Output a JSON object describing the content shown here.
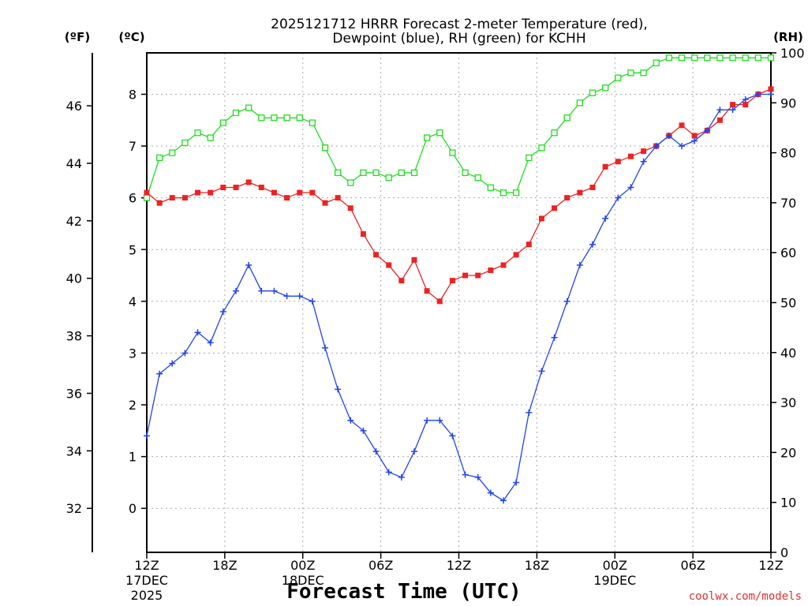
{
  "chart_data": {
    "type": "line",
    "title_line1": "2025121712 HRRR Forecast 2-meter Temperature (red),",
    "title_line2": "Dewpoint (blue), RH (green) for KCHH",
    "xlabel": "Forecast Time (UTC)",
    "credit": "coolwx.com/models",
    "units": {
      "fahrenheit": "(ºF)",
      "celsius": "(ºC)",
      "rh": "(RH)"
    },
    "x_hours_range": [
      0,
      48
    ],
    "celsius_range": [
      -0.85,
      8.8
    ],
    "rh_range": [
      0,
      100
    ],
    "grid": true,
    "celsius_ticks": [
      "0",
      "1",
      "2",
      "3",
      "4",
      "5",
      "6",
      "7",
      "8"
    ],
    "fahrenheit_ticks": [
      "32",
      "34",
      "36",
      "38",
      "40",
      "42",
      "44",
      "46"
    ],
    "rh_ticks": [
      "0",
      "10",
      "20",
      "30",
      "40",
      "50",
      "60",
      "70",
      "80",
      "90",
      "100"
    ],
    "x_ticks": [
      {
        "hour": 0,
        "line1": "12Z",
        "line2": "17DEC",
        "line3": "2025"
      },
      {
        "hour": 6,
        "line1": "18Z",
        "line2": "",
        "line3": ""
      },
      {
        "hour": 12,
        "line1": "00Z",
        "line2": "18DEC",
        "line3": ""
      },
      {
        "hour": 18,
        "line1": "06Z",
        "line2": "",
        "line3": ""
      },
      {
        "hour": 24,
        "line1": "12Z",
        "line2": "",
        "line3": ""
      },
      {
        "hour": 30,
        "line1": "18Z",
        "line2": "",
        "line3": ""
      },
      {
        "hour": 36,
        "line1": "00Z",
        "line2": "19DEC",
        "line3": ""
      },
      {
        "hour": 42,
        "line1": "06Z",
        "line2": "",
        "line3": ""
      },
      {
        "hour": 48,
        "line1": "12Z",
        "line2": "",
        "line3": ""
      }
    ],
    "series": [
      {
        "key": "temperature",
        "color": "#ee2222",
        "marker": "filled-square",
        "axis": "celsius",
        "values": [
          6.1,
          5.9,
          6.0,
          6.0,
          6.1,
          6.1,
          6.2,
          6.2,
          6.3,
          6.2,
          6.1,
          6.0,
          6.1,
          6.1,
          5.9,
          6.0,
          5.8,
          5.3,
          4.9,
          4.7,
          4.4,
          4.8,
          4.2,
          4.0,
          4.4,
          4.5,
          4.5,
          4.6,
          4.7,
          4.9,
          5.1,
          5.6,
          5.8,
          6.0,
          6.1,
          6.2,
          6.6,
          6.7,
          6.8,
          6.9,
          7.0,
          7.2,
          7.4,
          7.2,
          7.3,
          7.5,
          7.8,
          7.8,
          8.0,
          8.1
        ]
      },
      {
        "key": "dewpoint",
        "color": "#2244ee",
        "marker": "plus",
        "axis": "celsius",
        "values": [
          1.4,
          2.6,
          2.8,
          3.0,
          3.4,
          3.2,
          3.8,
          4.2,
          4.7,
          4.2,
          4.2,
          4.1,
          4.1,
          4.0,
          3.1,
          2.3,
          1.7,
          1.5,
          1.1,
          0.7,
          0.6,
          1.1,
          1.7,
          1.7,
          1.4,
          0.65,
          0.6,
          0.3,
          0.15,
          0.5,
          1.85,
          2.65,
          3.3,
          4.0,
          4.7,
          5.1,
          5.6,
          6.0,
          6.2,
          6.7,
          7.0,
          7.2,
          7.0,
          7.1,
          7.3,
          7.7,
          7.7,
          7.9,
          8.0,
          8.0
        ]
      },
      {
        "key": "rh",
        "color": "#22dd22",
        "marker": "open-square",
        "axis": "rh",
        "values": [
          71,
          79,
          80,
          82,
          84,
          83,
          86,
          88,
          89,
          87,
          87,
          87,
          87,
          86,
          81,
          76,
          74,
          76,
          76,
          75,
          76,
          76,
          83,
          84,
          80,
          76,
          75,
          73,
          72,
          72,
          79,
          81,
          84,
          87,
          90,
          92,
          93,
          95,
          96,
          96,
          98,
          99,
          99,
          99,
          99,
          99,
          99,
          99,
          99,
          99
        ]
      }
    ]
  }
}
